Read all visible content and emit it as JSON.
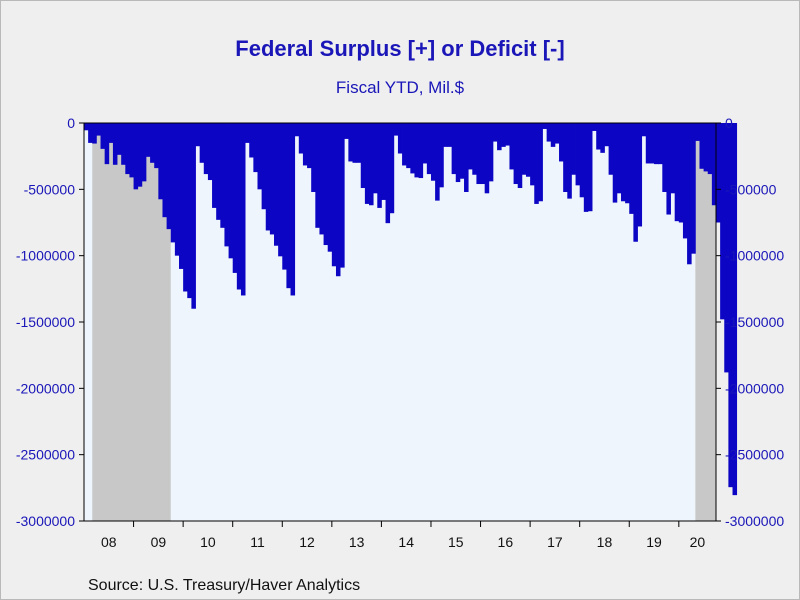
{
  "chart_data": {
    "type": "bar",
    "title": "Federal Surplus [+] or Deficit [-]",
    "subtitle": "Fiscal YTD, Mil.$",
    "source": "Source:  U.S. Treasury/Haver Analytics",
    "ylim": [
      -3000000,
      0
    ],
    "y_ticks": [
      0,
      -500000,
      -1000000,
      -1500000,
      -2000000,
      -2500000,
      -3000000
    ],
    "y_tick_labels": [
      "0",
      "-500000",
      "-1000000",
      "-1500000",
      "-2000000",
      "-2500000",
      "-3000000"
    ],
    "x_tick_labels": [
      "08",
      "09",
      "10",
      "11",
      "12",
      "13",
      "14",
      "15",
      "16",
      "17",
      "18",
      "19",
      "20"
    ],
    "x_range": [
      "2007-10",
      "2020-06"
    ],
    "recessions": [
      [
        "2007-12",
        "2009-06"
      ],
      [
        "2020-02",
        "2020-06"
      ]
    ],
    "series": [
      {
        "name": "Federal Surplus or Deficit, Fiscal YTD",
        "start": "2007-10",
        "frequency": "monthly",
        "values": [
          -55000,
          -150000,
          -155000,
          -95000,
          -195000,
          -310000,
          -150000,
          -315000,
          -240000,
          -315000,
          -385000,
          -410000,
          -500000,
          -480000,
          -440000,
          -255000,
          -300000,
          -340000,
          -575000,
          -710000,
          -800000,
          -900000,
          -1000000,
          -1100000,
          -1270000,
          -1320000,
          -1400000,
          -175000,
          -300000,
          -385000,
          -430000,
          -640000,
          -730000,
          -790000,
          -930000,
          -1020000,
          -1130000,
          -1255000,
          -1300000,
          -150000,
          -260000,
          -370000,
          -500000,
          -650000,
          -810000,
          -840000,
          -925000,
          -1005000,
          -1105000,
          -1245000,
          -1300000,
          -100000,
          -230000,
          -320000,
          -340000,
          -520000,
          -790000,
          -840000,
          -920000,
          -970000,
          -1080000,
          -1155000,
          -1090000,
          -120000,
          -290000,
          -300000,
          -300000,
          -490000,
          -610000,
          -620000,
          -530000,
          -640000,
          -580000,
          -755000,
          -680000,
          -95000,
          -230000,
          -320000,
          -340000,
          -380000,
          -410000,
          -415000,
          -305000,
          -385000,
          -435000,
          -585000,
          -485000,
          -180000,
          -180000,
          -385000,
          -445000,
          -420000,
          -520000,
          -350000,
          -390000,
          -460000,
          -460000,
          -530000,
          -440000,
          -140000,
          -205000,
          -180000,
          -170000,
          -350000,
          -460000,
          -490000,
          -390000,
          -405000,
          -470000,
          -610000,
          -590000,
          -45000,
          -140000,
          -180000,
          -155000,
          -290000,
          -520000,
          -570000,
          -390000,
          -470000,
          -560000,
          -670000,
          -665000,
          -60000,
          -200000,
          -225000,
          -175000,
          -390000,
          -600000,
          -530000,
          -590000,
          -605000,
          -685000,
          -895000,
          -780000,
          -100000,
          -305000,
          -305000,
          -310000,
          -310000,
          -520000,
          -690000,
          -530000,
          -740000,
          -750000,
          -870000,
          -1065000,
          -985000,
          -135000,
          -345000,
          -365000,
          -385000,
          -620000,
          -750000,
          -1480000,
          -1880000,
          -2745000,
          -2805000
        ]
      }
    ]
  }
}
